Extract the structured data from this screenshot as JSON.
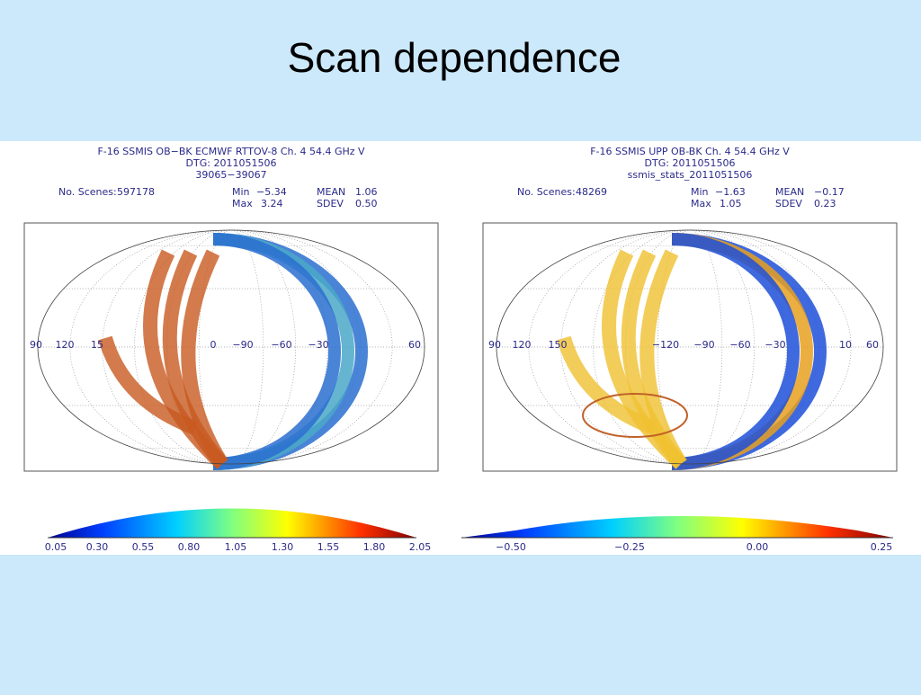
{
  "title": "Scan dependence",
  "panels": [
    {
      "header": [
        "F-16 SSMIS OB−BK ECMWF RTTOV-8 Ch. 4 54.4 GHz V",
        "DTG: 2011051506",
        "39065−39067"
      ],
      "scenes_label": "No. Scenes:",
      "scenes": "597178",
      "min_label": "Min",
      "min": "−5.34",
      "max_label": "Max",
      "max": "3.24",
      "mean_label": "MEAN",
      "mean": "1.06",
      "sdev_label": "SDEV",
      "sdev": "0.50",
      "lon_labels": [
        "90",
        "120",
        "15",
        "0",
        "−90",
        "−60",
        "−30",
        "60"
      ],
      "colorbar_labels": [
        "0.05",
        "0.30",
        "0.55",
        "0.80",
        "1.05",
        "1.30",
        "1.55",
        "1.80",
        "2.05"
      ]
    },
    {
      "header": [
        "F-16 SSMIS UPP OB-BK Ch. 4 54.4 GHz V",
        "DTG: 2011051506",
        "ssmis_stats_2011051506"
      ],
      "scenes_label": "No. Scenes:",
      "scenes": "48269",
      "min_label": "Min",
      "min": "−1.63",
      "max_label": "Max",
      "max": "1.05",
      "mean_label": "MEAN",
      "mean": "−0.17",
      "sdev_label": "SDEV",
      "sdev": "0.23",
      "lon_labels": [
        "90",
        "120",
        "150",
        "−120",
        "−90",
        "−60",
        "−30",
        "10",
        "60"
      ],
      "colorbar_labels": [
        "−0.50",
        "−0.25",
        "0.00",
        "0.25"
      ]
    }
  ]
}
